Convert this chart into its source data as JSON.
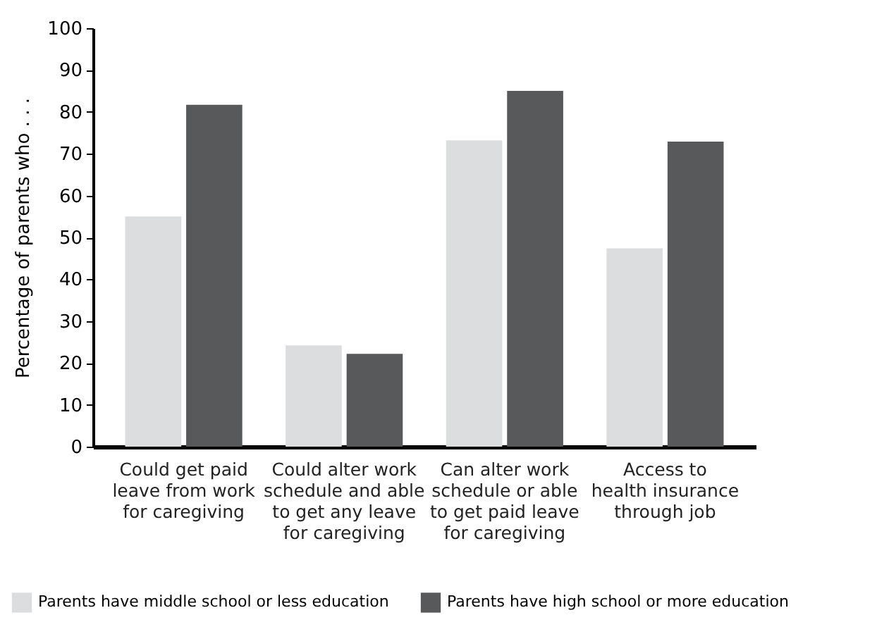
{
  "chart_data": {
    "type": "bar",
    "ylabel": "Percentage of parents who . . .",
    "categories": [
      "Could get paid\nleave from work\nfor caregiving",
      "Could alter work\nschedule and able\nto get any leave\nfor caregiving",
      "Can alter work\nschedule or able\nto get paid leave\nfor caregiving",
      "Access to\nhealth insurance\nthrough job"
    ],
    "series": [
      {
        "name": "Parents have middle school or less education",
        "color": "#dcdddf",
        "values": [
          55,
          24.2,
          73.2,
          47.4
        ]
      },
      {
        "name": "Parents have high school or more education",
        "color": "#58595b",
        "values": [
          81.7,
          22.2,
          85,
          72.9
        ]
      }
    ],
    "ylim": [
      0,
      100
    ],
    "yticks": [
      0,
      10,
      20,
      30,
      40,
      50,
      60,
      70,
      80,
      90,
      100
    ],
    "grid": false,
    "legend": "bottom"
  }
}
